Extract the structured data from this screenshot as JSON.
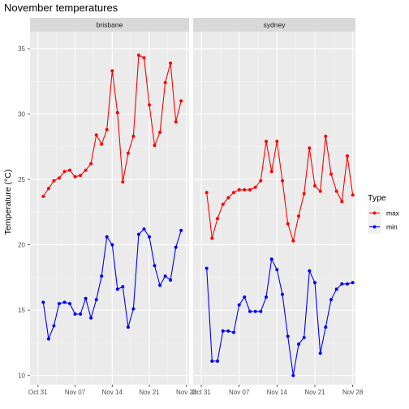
{
  "chart_data": {
    "type": "line",
    "title": "November temperatures",
    "xlabel": "",
    "ylabel": "Temperature (°C)",
    "ylim": [
      9.3,
      36.3
    ],
    "yticks": [
      10,
      15,
      20,
      25,
      30,
      35
    ],
    "grid": true,
    "x_ticks": [
      "Oct 31",
      "Nov 07",
      "Nov 14",
      "Nov 21",
      "Nov 28"
    ],
    "x_tick_days": [
      0,
      7,
      14,
      21,
      28
    ],
    "x_start_date": "2017-10-31",
    "x_day_range": [
      -1.5,
      28.5
    ],
    "legend": {
      "title": "Type",
      "position": "right",
      "entries": [
        {
          "label": "max",
          "color": "#ff0000"
        },
        {
          "label": "min",
          "color": "#0000ff"
        }
      ]
    },
    "series_colors": {
      "max": "#ff0000",
      "min": "#0000ff"
    },
    "panels": [
      {
        "name": "brisbane",
        "series": [
          {
            "name": "max",
            "values": [
              23.7,
              24.3,
              24.9,
              25.1,
              25.6,
              25.7,
              25.2,
              25.3,
              25.7,
              26.2,
              28.4,
              27.7,
              28.8,
              33.3,
              30.1,
              24.8,
              27.0,
              28.3,
              34.5,
              34.3,
              30.7,
              27.6,
              28.6,
              32.4,
              33.9,
              29.4,
              31.0
            ]
          },
          {
            "name": "min",
            "values": [
              15.6,
              12.8,
              13.8,
              15.5,
              15.6,
              15.5,
              14.7,
              14.7,
              15.9,
              14.4,
              15.8,
              17.6,
              20.6,
              20.0,
              16.6,
              16.8,
              13.7,
              15.1,
              20.8,
              21.2,
              20.6,
              18.4,
              16.9,
              17.6,
              17.3,
              19.8,
              21.1
            ]
          }
        ],
        "x_days": [
          1,
          2,
          3,
          4,
          5,
          6,
          7,
          8,
          9,
          10,
          11,
          12,
          13,
          14,
          15,
          16,
          17,
          18,
          19,
          20,
          21,
          22,
          23,
          24,
          25,
          26,
          27
        ]
      },
      {
        "name": "sydney",
        "series": [
          {
            "name": "max",
            "values": [
              24.0,
              20.5,
              22.0,
              23.1,
              23.6,
              24.0,
              24.2,
              24.2,
              24.2,
              24.4,
              24.9,
              27.9,
              25.6,
              27.9,
              24.9,
              21.6,
              20.3,
              22.2,
              23.9,
              27.4,
              24.5,
              24.1,
              28.3,
              25.4,
              24.1,
              23.3,
              26.8,
              23.8
            ]
          },
          {
            "name": "min",
            "values": [
              18.2,
              11.1,
              11.1,
              13.4,
              13.4,
              13.3,
              15.4,
              16.0,
              14.9,
              14.9,
              14.9,
              16.0,
              18.9,
              18.1,
              16.2,
              13.0,
              10.0,
              12.4,
              12.9,
              18.0,
              17.1,
              11.7,
              13.7,
              15.8,
              16.6,
              17.0,
              17.0,
              17.1
            ]
          }
        ],
        "x_days": [
          1,
          2,
          3,
          4,
          5,
          6,
          7,
          8,
          9,
          10,
          11,
          12,
          13,
          14,
          15,
          16,
          17,
          18,
          19,
          20,
          21,
          22,
          23,
          24,
          25,
          26,
          27,
          28
        ]
      }
    ]
  }
}
